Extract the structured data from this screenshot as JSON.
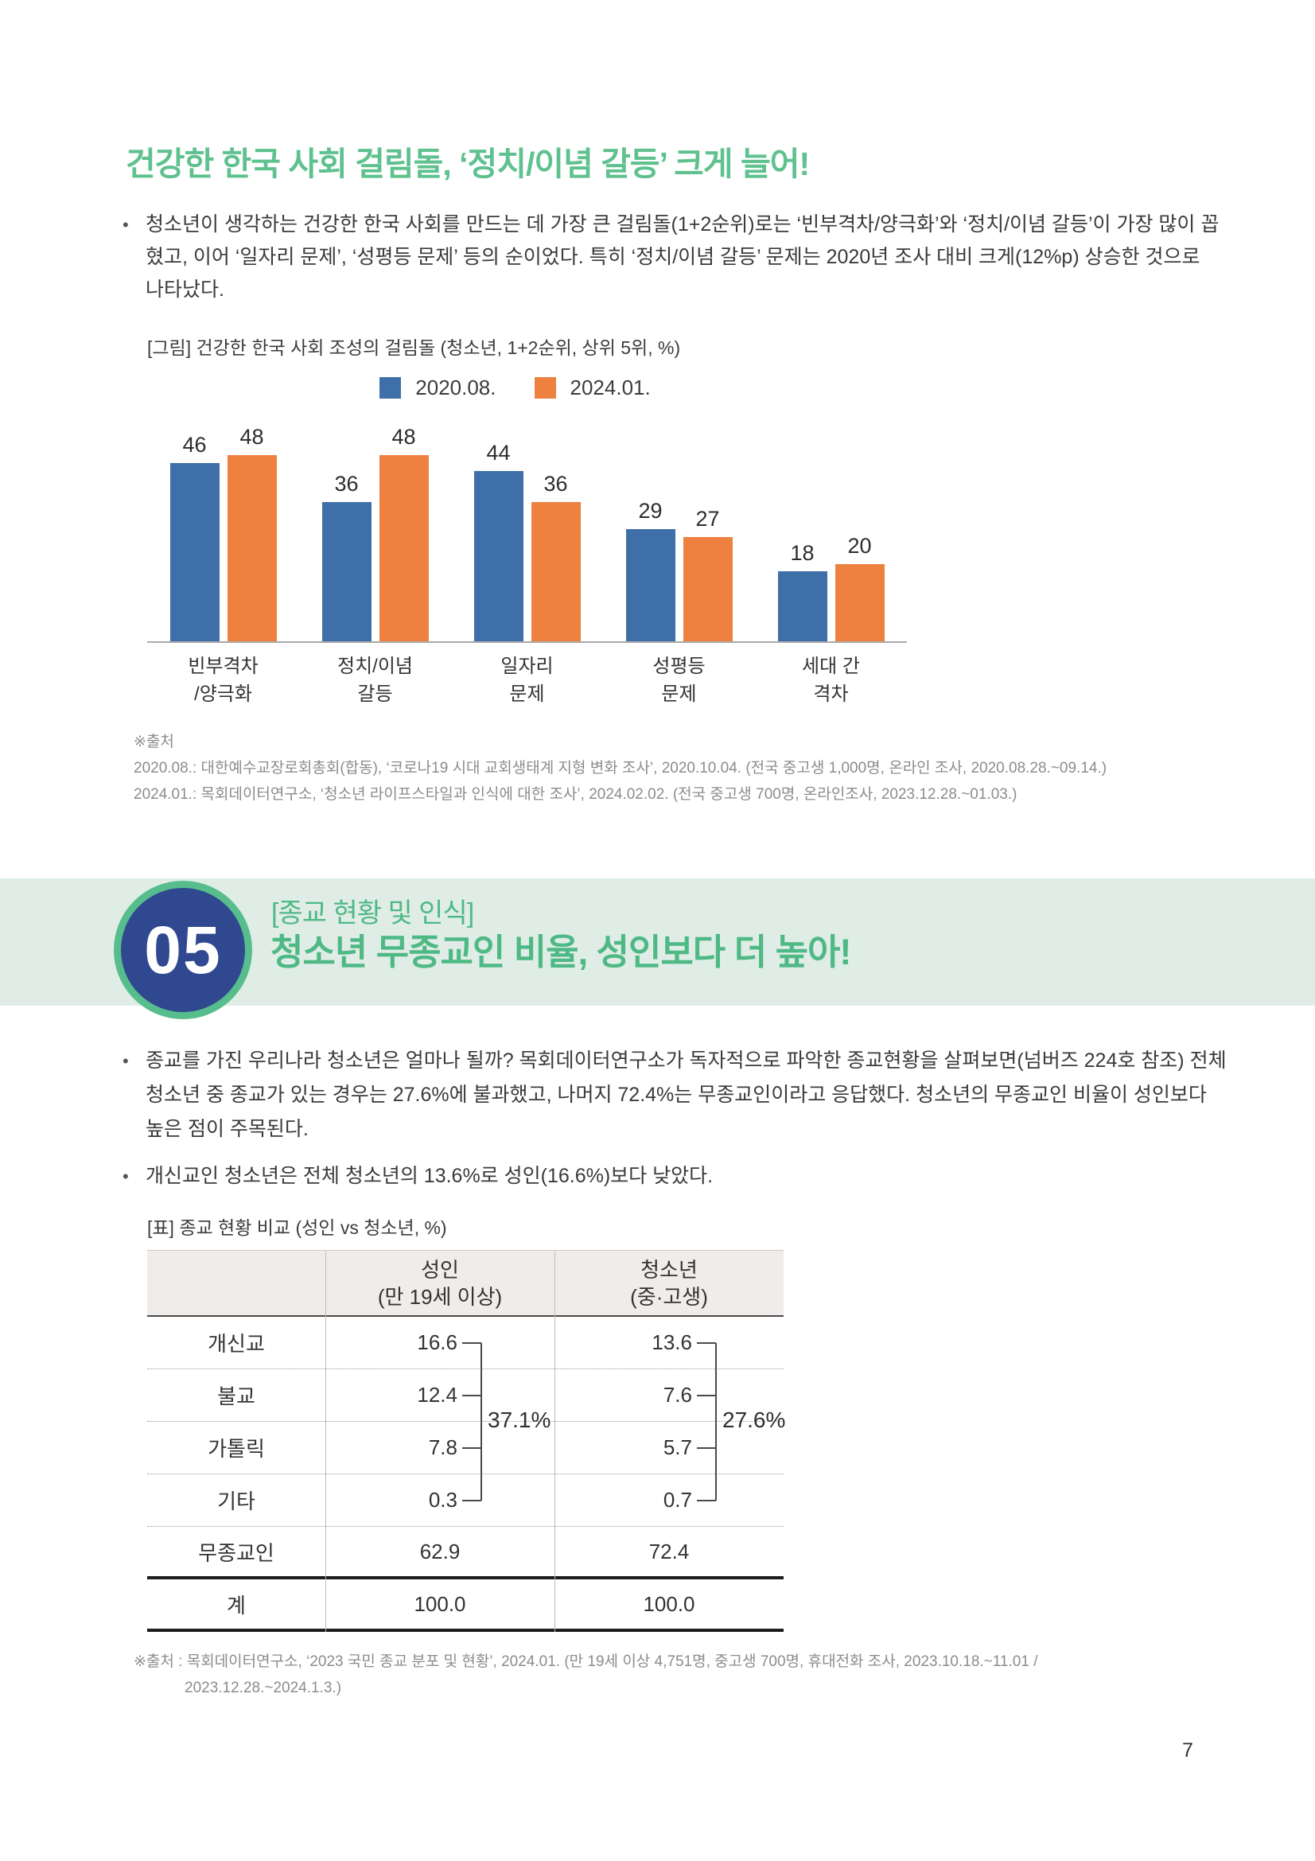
{
  "page": {
    "number": "7"
  },
  "section1": {
    "title": "건강한 한국 사회 걸림돌, ‘정치/이념 갈등’ 크게 늘어!",
    "bullet": "청소년이 생각하는 건강한 한국 사회를 만드는 데 가장 큰 걸림돌(1+2순위)로는 ‘빈부격차/양극화’와 ‘정치/이념 갈등’이 가장 많이 꼽혔고, 이어 ‘일자리 문제’, ‘성평등 문제’ 등의 순이었다. 특히 ‘정치/이념 갈등’ 문제는 2020년 조사 대비 크게(12%p) 상승한 것으로 나타났다.",
    "chart_caption": "[그림] 건강한 한국 사회 조성의 걸림돌 (청소년, 1+2순위, 상위 5위, %)",
    "source_label": "※출처",
    "source_line1": "2020.08.: 대한예수교장로회총회(합동), ‘코로나19 시대 교회생태계 지형 변화 조사’, 2020.10.04. (전국 중고생 1,000명, 온라인 조사, 2020.08.28.~09.14.)",
    "source_line2": "2024.01.: 목회데이터연구소, ‘청소년 라이프스타일과 인식에 대한 조사’, 2024.02.02. (전국 중고생 700명, 온라인조사, 2023.12.28.~01.03.)"
  },
  "chart_data": {
    "type": "bar",
    "title": "건강한 한국 사회 조성의 걸림돌 (청소년, 1+2순위, 상위 5위, %)",
    "categories": [
      {
        "line1": "빈부격차",
        "line2": "/양극화"
      },
      {
        "line1": "정치/이념",
        "line2": "갈등"
      },
      {
        "line1": "일자리",
        "line2": "문제"
      },
      {
        "line1": "성평등",
        "line2": "문제"
      },
      {
        "line1": "세대 간",
        "line2": "격차"
      }
    ],
    "series": [
      {
        "name": "2020.08.",
        "color": "#3e6fa8",
        "values": [
          46,
          36,
          44,
          29,
          18
        ]
      },
      {
        "name": "2024.01.",
        "color": "#ee8140",
        "values": [
          48,
          48,
          36,
          27,
          20
        ]
      }
    ],
    "ylim": [
      0,
      55
    ],
    "grid": false,
    "legend_position": "top-center",
    "value_labels": true
  },
  "section2": {
    "number": "05",
    "kicker": "[종교 현황 및 인식]",
    "title": "청소년 무종교인 비율, 성인보다 더 높아!",
    "bullet1": "종교를 가진 우리나라 청소년은 얼마나 될까? 목회데이터연구소가 독자적으로 파악한 종교현황을 살펴보면(넘버즈 224호 참조) 전체 청소년 중 종교가 있는 경우는 27.6%에 불과했고, 나머지 72.4%는 무종교인이라고 응답했다. 청소년의 무종교인 비율이 성인보다 높은 점이 주목된다.",
    "bullet2": "개신교인 청소년은 전체 청소년의 13.6%로 성인(16.6%)보다 낮았다.",
    "table_caption": "[표] 종교 현황 비교 (성인 vs 청소년, %)",
    "table": {
      "col_headers": [
        {
          "line1": "성인",
          "line2": "(만 19세 이상)"
        },
        {
          "line1": "청소년",
          "line2": "(중·고생)"
        }
      ],
      "rows": [
        {
          "label": "개신교",
          "adult": "16.6",
          "youth": "13.6"
        },
        {
          "label": "불교",
          "adult": "12.4",
          "youth": "7.6"
        },
        {
          "label": "가톨릭",
          "adult": "7.8",
          "youth": "5.7"
        },
        {
          "label": "기타",
          "adult": "0.3",
          "youth": "0.7"
        },
        {
          "label": "무종교인",
          "adult": "62.9",
          "youth": "72.4"
        },
        {
          "label": "계",
          "adult": "100.0",
          "youth": "100.0"
        }
      ],
      "bracket_adult": "37.1%",
      "bracket_youth": "27.6%"
    },
    "source_line1": "※출처 : 목회데이터연구소, ‘2023 국민 종교 분포 및 현황’, 2024.01. (만 19세 이상 4,751명, 중고생 700명, 휴대전화 조사, 2023.10.18.~11.01 /",
    "source_line2": "2023.12.28.~2024.1.3.)"
  }
}
